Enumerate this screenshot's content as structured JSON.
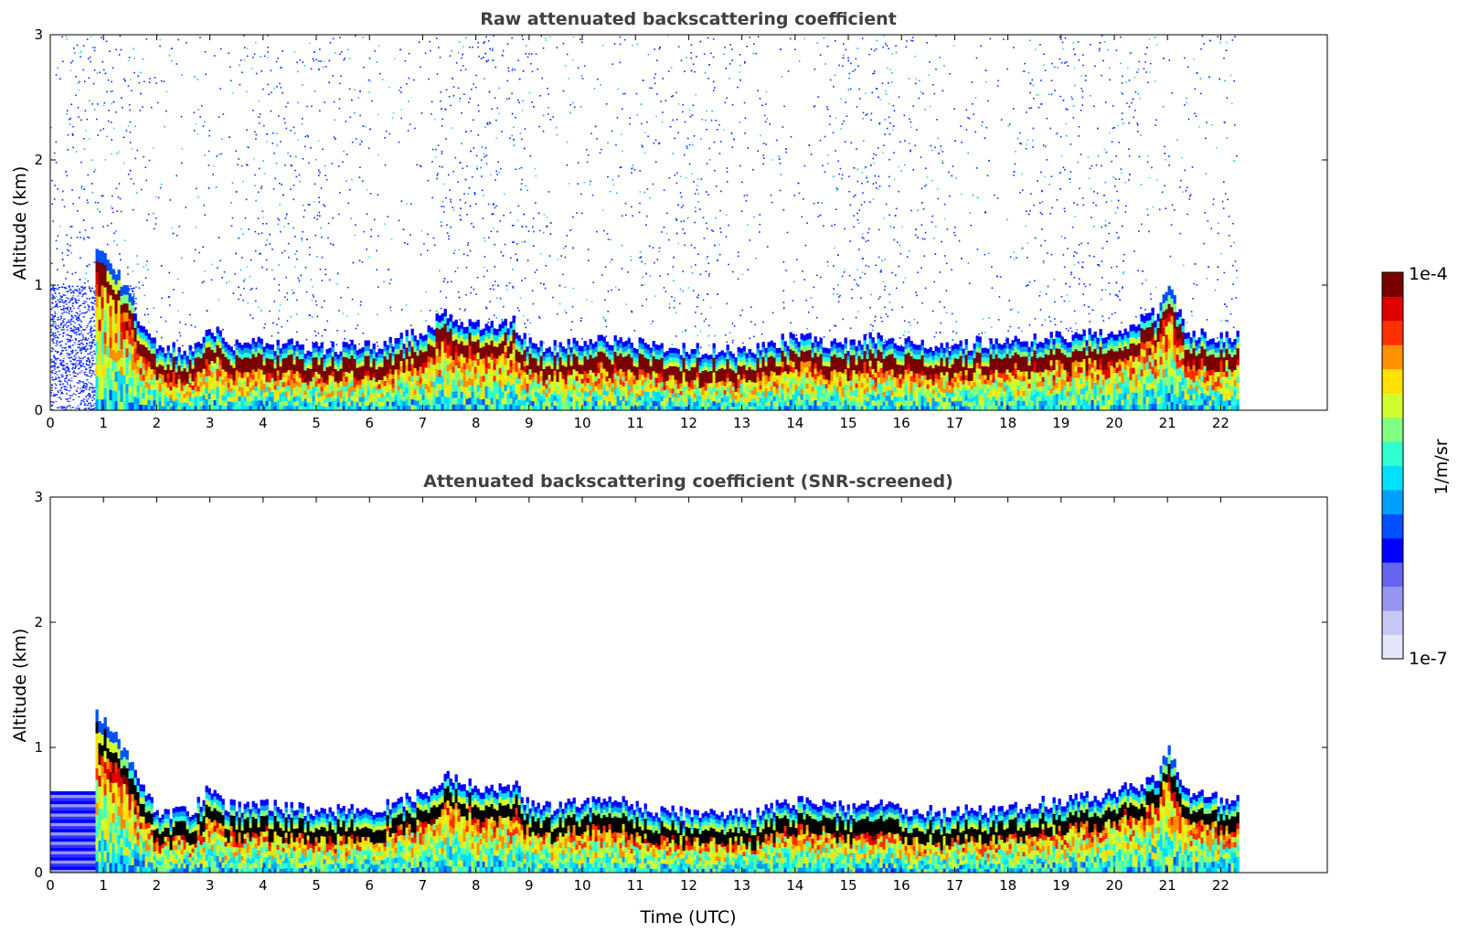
{
  "chart_data": [
    {
      "type": "heatmap",
      "title": "Raw attenuated backscattering coefficient",
      "xlabel": "",
      "ylabel": "Altitude (km)",
      "xlim": [
        0,
        24
      ],
      "ylim": [
        0,
        3
      ],
      "xticks": [
        "0",
        "1",
        "2",
        "3",
        "4",
        "5",
        "6",
        "7",
        "8",
        "9",
        "10",
        "11",
        "12",
        "13",
        "14",
        "15",
        "16",
        "17",
        "18",
        "19",
        "20",
        "21",
        "22"
      ],
      "yticks": [
        "0",
        "1",
        "2",
        "3"
      ],
      "data_end_hour": 22.3,
      "noise": "high",
      "layer_height_km": [
        [
          0.85,
          1.15
        ],
        [
          1.2,
          0.95
        ],
        [
          1.6,
          0.6
        ],
        [
          2.0,
          0.32
        ],
        [
          2.6,
          0.3
        ],
        [
          3.0,
          0.5
        ],
        [
          3.3,
          0.35
        ],
        [
          4,
          0.35
        ],
        [
          5,
          0.32
        ],
        [
          6,
          0.33
        ],
        [
          7,
          0.45
        ],
        [
          7.4,
          0.6
        ],
        [
          8,
          0.5
        ],
        [
          8.7,
          0.52
        ],
        [
          9,
          0.35
        ],
        [
          9.5,
          0.33
        ],
        [
          10,
          0.38
        ],
        [
          10.5,
          0.4
        ],
        [
          11,
          0.35
        ],
        [
          12,
          0.3
        ],
        [
          13,
          0.3
        ],
        [
          13.5,
          0.35
        ],
        [
          14,
          0.4
        ],
        [
          15,
          0.35
        ],
        [
          15.5,
          0.4
        ],
        [
          16,
          0.35
        ],
        [
          17,
          0.35
        ],
        [
          18,
          0.37
        ],
        [
          19,
          0.4
        ],
        [
          20,
          0.45
        ],
        [
          20.8,
          0.6
        ],
        [
          21,
          0.85
        ],
        [
          21.3,
          0.45
        ],
        [
          22,
          0.4
        ],
        [
          22.3,
          0.4
        ]
      ]
    },
    {
      "type": "heatmap",
      "title": "Attenuated backscattering coefficient (SNR-screened)",
      "xlabel": "Time (UTC)",
      "ylabel": "Altitude (km)",
      "xlim": [
        0,
        24
      ],
      "ylim": [
        0,
        3
      ],
      "xticks": [
        "0",
        "1",
        "2",
        "3",
        "4",
        "5",
        "6",
        "7",
        "8",
        "9",
        "10",
        "11",
        "12",
        "13",
        "14",
        "15",
        "16",
        "17",
        "18",
        "19",
        "20",
        "21",
        "22"
      ],
      "yticks": [
        "0",
        "1",
        "2",
        "3"
      ],
      "data_end_hour": 22.3,
      "noise": "screened",
      "layer_height_km": [
        [
          0.85,
          1.1
        ],
        [
          1.2,
          0.95
        ],
        [
          1.6,
          0.6
        ],
        [
          2.0,
          0.3
        ],
        [
          2.6,
          0.3
        ],
        [
          3.0,
          0.5
        ],
        [
          3.3,
          0.35
        ],
        [
          4,
          0.35
        ],
        [
          5,
          0.32
        ],
        [
          6,
          0.33
        ],
        [
          7,
          0.45
        ],
        [
          7.4,
          0.6
        ],
        [
          8,
          0.5
        ],
        [
          8.7,
          0.52
        ],
        [
          9,
          0.35
        ],
        [
          9.5,
          0.33
        ],
        [
          10,
          0.38
        ],
        [
          10.5,
          0.4
        ],
        [
          11,
          0.35
        ],
        [
          12,
          0.28
        ],
        [
          13,
          0.28
        ],
        [
          13.5,
          0.33
        ],
        [
          14,
          0.38
        ],
        [
          15,
          0.33
        ],
        [
          15.5,
          0.35
        ],
        [
          16,
          0.33
        ],
        [
          17,
          0.3
        ],
        [
          18,
          0.33
        ],
        [
          19,
          0.4
        ],
        [
          20,
          0.45
        ],
        [
          20.8,
          0.6
        ],
        [
          21,
          0.85
        ],
        [
          21.3,
          0.45
        ],
        [
          22,
          0.4
        ],
        [
          22.3,
          0.4
        ]
      ]
    }
  ],
  "colorbar": {
    "label": "1/m/sr",
    "max_label": "1e-4",
    "min_label": "1e-7",
    "colors": [
      "#e6e6fa",
      "#c8c8f5",
      "#9696f0",
      "#6464f0",
      "#0000ff",
      "#0050ff",
      "#00a0ff",
      "#00e0ff",
      "#30ffd0",
      "#80ff80",
      "#d0ff30",
      "#ffe000",
      "#ff9000",
      "#ff3000",
      "#e00000",
      "#7a0000"
    ]
  }
}
